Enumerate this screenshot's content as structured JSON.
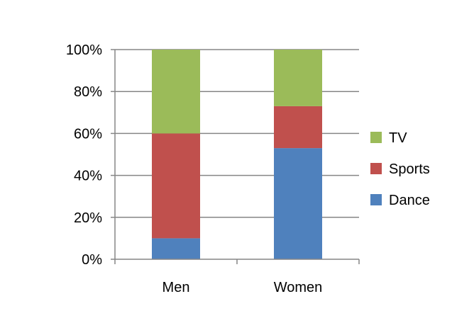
{
  "chart_data": {
    "type": "bar",
    "stacked": true,
    "percent": true,
    "categories": [
      "Men",
      "Women"
    ],
    "series": [
      {
        "name": "Dance",
        "color": "#4F81BD",
        "values": [
          10,
          53
        ]
      },
      {
        "name": "Sports",
        "color": "#C0504D",
        "values": [
          50,
          20
        ]
      },
      {
        "name": "TV",
        "color": "#9BBB59",
        "values": [
          40,
          27
        ]
      }
    ],
    "yticks": [
      "0%",
      "20%",
      "40%",
      "60%",
      "80%",
      "100%"
    ],
    "ylim": [
      0,
      100
    ],
    "grid": true,
    "legend_position": "right"
  }
}
